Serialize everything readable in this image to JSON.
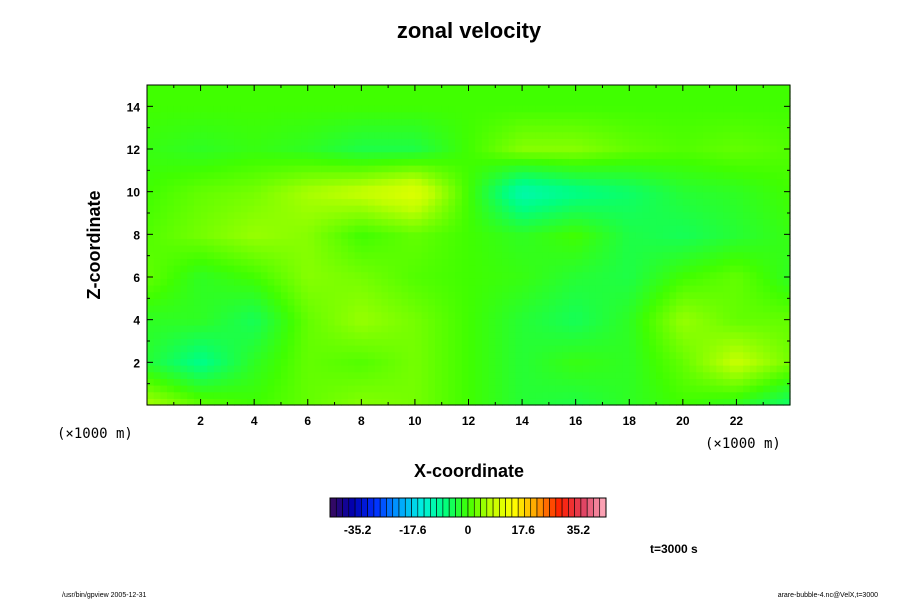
{
  "chart_data": {
    "type": "heatmap",
    "title": "zonal velocity",
    "xlabel": "X-coordinate",
    "ylabel": "Z-coordinate",
    "x_unit": "(×1000 m)",
    "y_unit": "(×1000 m)",
    "xlim": [
      0,
      24
    ],
    "ylim": [
      0,
      15
    ],
    "x_ticks": [
      2,
      4,
      6,
      8,
      10,
      12,
      14,
      16,
      18,
      20,
      22
    ],
    "y_ticks": [
      2,
      4,
      6,
      8,
      10,
      12,
      14
    ],
    "x_tick_labels": [
      "2",
      "4",
      "6",
      "8",
      "10",
      "12",
      "14",
      "16",
      "18",
      "20",
      "22"
    ],
    "y_tick_labels": [
      "2",
      "4",
      "6",
      "8",
      "10",
      "12",
      "14"
    ],
    "colorbar": {
      "min": -44,
      "max": 44,
      "ticks": [
        -35.2,
        -17.6,
        0,
        17.6,
        35.2
      ],
      "tick_labels": [
        "-35.2",
        "-17.6",
        "0",
        "17.6",
        "35.2"
      ],
      "colors": [
        "#3a0a5a",
        "#0000b0",
        "#0030ff",
        "#00a0ff",
        "#00f0e0",
        "#00ff80",
        "#40ff00",
        "#c0ff00",
        "#ffff00",
        "#ffa000",
        "#ff2000",
        "#e04060",
        "#ffb0c0"
      ]
    },
    "field": {
      "grid_x": [
        0,
        2,
        4,
        6,
        8,
        10,
        12,
        14,
        16,
        18,
        20,
        22,
        24
      ],
      "grid_z": [
        0,
        2,
        4,
        6,
        8,
        10,
        12,
        14
      ],
      "values": [
        [
          6,
          2,
          0,
          2,
          4,
          3,
          0,
          -3,
          -4,
          -2,
          0,
          -2,
          -6
        ],
        [
          -3,
          -8,
          -2,
          2,
          1,
          3,
          0,
          -3,
          -1,
          -2,
          2,
          8,
          3
        ],
        [
          -2,
          -2,
          -5,
          2,
          5,
          3,
          0,
          -3,
          -5,
          -2,
          5,
          2,
          2
        ],
        [
          2,
          -2,
          0,
          4,
          3,
          1,
          0,
          -1,
          -3,
          -4,
          0,
          2,
          -2
        ],
        [
          1,
          3,
          5,
          4,
          0,
          2,
          0,
          -2,
          0,
          -4,
          -5,
          -3,
          -1
        ],
        [
          0,
          2,
          3,
          6,
          8,
          11,
          0,
          -11,
          -8,
          -6,
          -3,
          -2,
          0
        ],
        [
          -1,
          -2,
          -1,
          -2,
          -4,
          -4,
          0,
          4,
          4,
          2,
          1,
          2,
          1
        ],
        [
          0,
          0,
          0,
          0,
          0,
          0,
          0,
          0,
          0,
          0,
          0,
          0,
          0
        ]
      ]
    },
    "time_label": "t=3000 s",
    "footer_left": "/usr/bin/gpview 2005-12-31",
    "footer_right": "arare-bubble-4.nc@VelX,t=3000"
  }
}
